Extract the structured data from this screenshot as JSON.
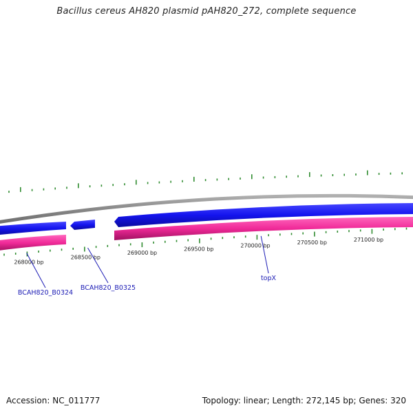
{
  "title": "Bacillus cereus AH820 plasmid pAH820_272, complete sequence",
  "footer": {
    "accession": "Accession: NC_011777",
    "summary": "Topology: linear; Length: 272,145 bp; Genes: 320"
  },
  "scale_labels": [
    {
      "bp": 268000,
      "text": "268000 bp"
    },
    {
      "bp": 268500,
      "text": "268500 bp"
    },
    {
      "bp": 269000,
      "text": "269000 bp"
    },
    {
      "bp": 269500,
      "text": "269500 bp"
    },
    {
      "bp": 270000,
      "text": "270000 bp"
    },
    {
      "bp": 270500,
      "text": "270500 bp"
    },
    {
      "bp": 271000,
      "text": "271000 bp"
    }
  ],
  "gene_labels": [
    {
      "name": "BCAH820_B0324",
      "bp": 267980
    },
    {
      "name": "BCAH820_B0325",
      "bp": 268520
    },
    {
      "name": "topX",
      "bp": 270050
    }
  ],
  "colors": {
    "backbone": "#8c8c8c",
    "forward_strand": "#1010e8",
    "reverse_strand": "#ee2b95",
    "ticks": "#2e8b2e"
  }
}
